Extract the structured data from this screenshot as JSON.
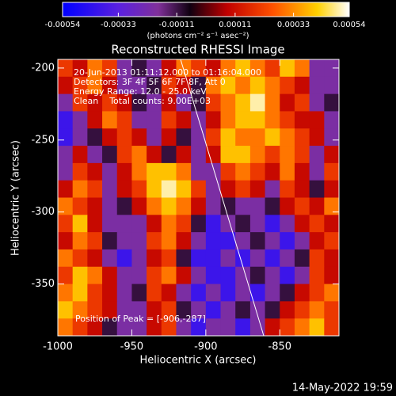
{
  "chart_data": {
    "type": "heatmap",
    "title": "Reconstructed RHESSI Image",
    "xlabel": "Heliocentric X (arcsec)",
    "ylabel": "Heliocentric Y (arcsec)",
    "colorbar_label": "(photons cm⁻² s⁻¹ asec⁻²)",
    "annotations": [
      "20-Jun-2013 01:11:12.000 to 01:16:04.000",
      "Detectors: 3F 4F 5F 6F 7F 8F, Att 0",
      "Energy Range: 12.0 - 25.0 keV",
      "Clean    Total counts: 9.00E+03"
    ],
    "peak_label": "Position of Peak = [-906,-287]",
    "footer": "14-May-2022 19:59",
    "xlim": [
      -1000,
      -810
    ],
    "ylim": [
      -386,
      -194
    ],
    "xticks": [
      -1000,
      -950,
      -900,
      -850
    ],
    "yticks": [
      -200,
      -250,
      -300,
      -350
    ],
    "zlim": [
      -0.00054,
      0.00054
    ],
    "zticks": [
      -0.00054,
      -0.00033,
      -0.00011,
      0.00011,
      0.00033,
      0.00054
    ],
    "colorscale": [
      [
        -0.00054,
        "#0000ff"
      ],
      [
        -0.00033,
        "#5a20e0"
      ],
      [
        -0.00018,
        "#80309a"
      ],
      [
        -6e-05,
        "#100010"
      ],
      [
        8e-05,
        "#c00000"
      ],
      [
        0.00025,
        "#ff5000"
      ],
      [
        0.00042,
        "#ffd000"
      ],
      [
        0.00054,
        "#ffffff"
      ]
    ],
    "x": [
      -995,
      -985,
      -975,
      -965,
      -955,
      -945,
      -935,
      -925,
      -915,
      -905,
      -895,
      -885,
      -875,
      -865,
      -855,
      -845,
      -835,
      -825,
      -815
    ],
    "y": [
      -200,
      -212,
      -224,
      -236,
      -248,
      -260,
      -272,
      -284,
      -296,
      -308,
      -320,
      -332,
      -344,
      -356,
      -368,
      -380
    ],
    "z": [
      [
        0.0002,
        0.0001,
        0.0003,
        0.0002,
        -0.0002,
        -0.0001,
        -0.0002,
        0.0001,
        0.0003,
        0.0002,
        0.0001,
        0.0003,
        0.0004,
        0.0003,
        0.0002,
        0.0004,
        0.0003,
        -0.0002,
        -0.0002
      ],
      [
        0.0001,
        0.0002,
        0.0003,
        0.0001,
        -0.0002,
        -0.0002,
        -0.0001,
        0.0002,
        0.0001,
        -0.0001,
        0.0003,
        0.0004,
        0.0003,
        0.0004,
        0.0003,
        0.0002,
        0.0001,
        -0.0002,
        -0.0002
      ],
      [
        -0.0002,
        0.0002,
        0.0001,
        0.0002,
        0.0001,
        -0.0001,
        -0.0002,
        0.0001,
        -0.0002,
        -0.0001,
        0.0002,
        0.0003,
        0.0004,
        0.0005,
        0.0003,
        0.0001,
        0.0002,
        -0.0002,
        -0.0001
      ],
      [
        -0.0004,
        -0.0002,
        0.0001,
        0.0003,
        0.0002,
        -0.0002,
        -0.0002,
        0.0002,
        0.0001,
        -0.0002,
        0.0001,
        0.0003,
        0.0004,
        0.0004,
        0.0003,
        0.0002,
        0.0001,
        0.0001,
        -0.0002
      ],
      [
        -0.0004,
        -0.0002,
        -0.0001,
        0.0001,
        0.0002,
        0.0001,
        -0.0002,
        0.0001,
        -0.0001,
        -0.0002,
        0.0002,
        0.0004,
        0.0003,
        0.0003,
        0.0004,
        0.0003,
        0.0002,
        0.0001,
        -0.0002
      ],
      [
        -0.0002,
        0.0001,
        -0.0002,
        -0.0001,
        0.0002,
        0.0003,
        0.0001,
        -0.0001,
        0.0001,
        -0.0002,
        0.0001,
        0.0004,
        0.0004,
        0.0003,
        0.0002,
        0.0003,
        0.0002,
        -0.0002,
        0.0001
      ],
      [
        -0.0002,
        0.0002,
        0.0001,
        -0.0002,
        0.0001,
        0.0003,
        0.0004,
        0.0004,
        0.0003,
        -0.0002,
        -0.0002,
        0.0002,
        0.0003,
        0.0002,
        0.0001,
        0.0003,
        0.0001,
        -0.0002,
        0.0002
      ],
      [
        0.0001,
        0.0003,
        0.0002,
        -0.0002,
        0.0001,
        0.0002,
        0.0004,
        0.0005,
        0.0004,
        0.0002,
        -0.0002,
        0.0001,
        0.0002,
        0.0001,
        -0.0002,
        0.0002,
        0.0001,
        -0.0001,
        0.0001
      ],
      [
        0.0003,
        0.0002,
        0.0001,
        -0.0002,
        -0.0001,
        0.0001,
        0.0003,
        0.0004,
        0.0003,
        0.0001,
        -0.0002,
        -0.0001,
        -0.0002,
        -0.0002,
        -0.0001,
        0.0001,
        0.0002,
        0.0001,
        0.0003
      ],
      [
        0.0002,
        0.0004,
        0.0001,
        -0.0002,
        -0.0002,
        -0.0002,
        0.0001,
        0.0003,
        0.0002,
        -0.0001,
        -0.0004,
        -0.0002,
        -0.0001,
        -0.0002,
        -0.0004,
        -0.0002,
        0.0001,
        0.0002,
        0.0001
      ],
      [
        0.0001,
        0.0003,
        0.0002,
        -0.0001,
        -0.0002,
        -0.0002,
        0.0002,
        0.0003,
        0.0001,
        -0.0002,
        -0.0004,
        -0.0004,
        -0.0002,
        -0.0001,
        -0.0002,
        -0.0004,
        -0.0002,
        0.0001,
        0.0002
      ],
      [
        0.0003,
        0.0002,
        0.0001,
        -0.0002,
        -0.0004,
        -0.0002,
        0.0001,
        0.0002,
        -0.0001,
        -0.0004,
        -0.0004,
        -0.0002,
        -0.0004,
        -0.0002,
        -0.0004,
        -0.0002,
        -0.0001,
        0.0002,
        0.0001
      ],
      [
        0.0002,
        0.0004,
        0.0003,
        0.0001,
        -0.0002,
        -0.0002,
        0.0002,
        0.0003,
        0.0001,
        -0.0002,
        -0.0004,
        -0.0004,
        -0.0002,
        -0.0001,
        -0.0002,
        -0.0004,
        -0.0002,
        0.0002,
        0.0001
      ],
      [
        0.0003,
        0.0004,
        0.0002,
        0.0001,
        -0.0002,
        -0.0001,
        0.0002,
        0.0001,
        -0.0002,
        -0.0004,
        -0.0002,
        -0.0004,
        -0.0002,
        -0.0004,
        -0.0002,
        -0.0001,
        0.0001,
        0.0002,
        0.0003
      ],
      [
        0.0004,
        0.0003,
        0.0002,
        0.0001,
        -0.0002,
        -0.0002,
        0.0001,
        0.0002,
        -0.0001,
        -0.0002,
        -0.0004,
        -0.0002,
        -0.0001,
        -0.0002,
        -0.0001,
        0.0001,
        0.0002,
        0.0003,
        0.0002
      ],
      [
        0.0003,
        0.0002,
        0.0001,
        -0.0001,
        -0.0002,
        -0.0002,
        0.0001,
        0.0002,
        -0.0002,
        -0.0004,
        -0.0002,
        -0.0002,
        -0.0004,
        -0.0002,
        0.0001,
        0.0002,
        0.0003,
        0.0004,
        0.0002
      ]
    ]
  }
}
